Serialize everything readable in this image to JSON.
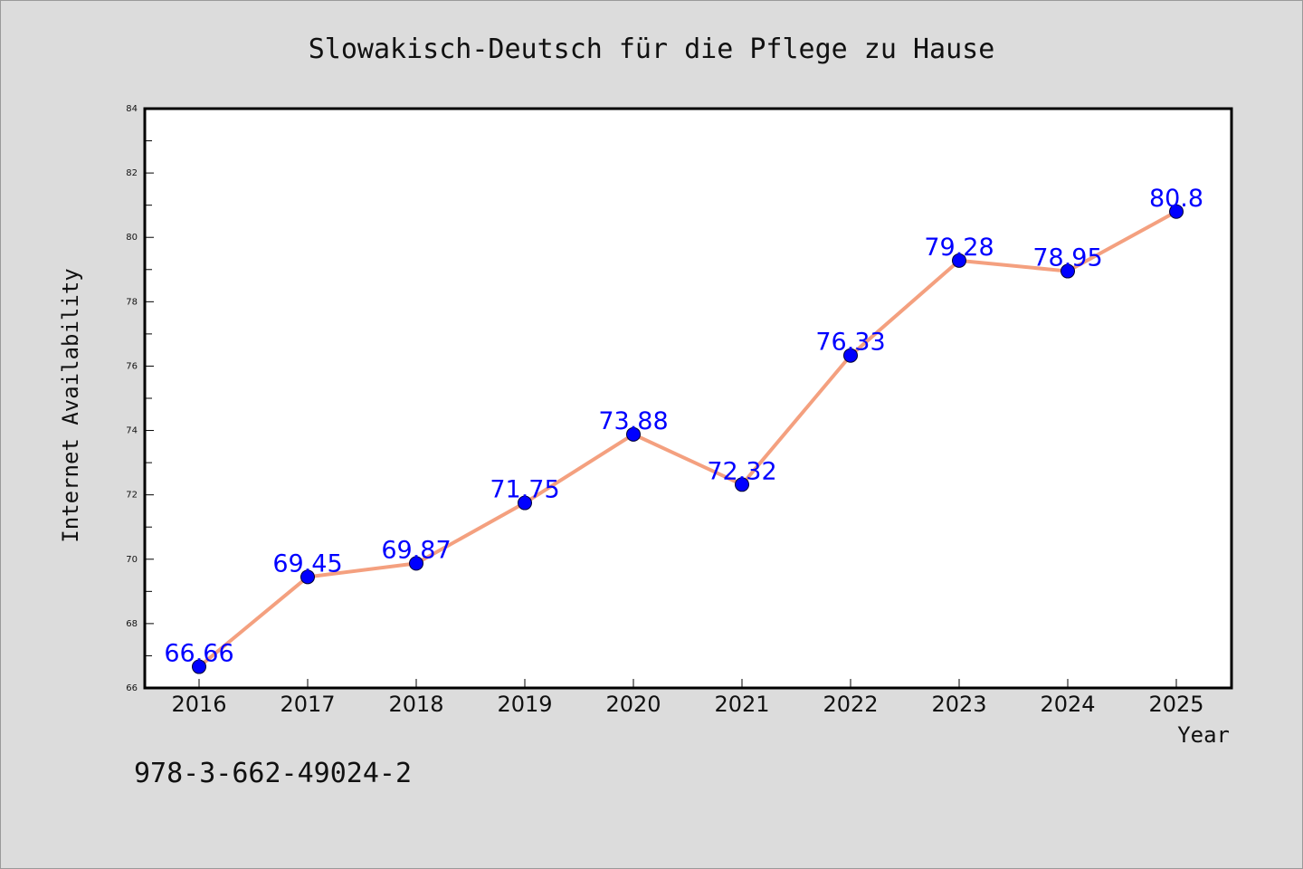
{
  "chart_data": {
    "type": "line",
    "title": "Slowakisch-Deutsch für die Pflege zu Hause",
    "xlabel": "Year",
    "ylabel": "Internet Availability",
    "x": [
      "2016",
      "2017",
      "2018",
      "2019",
      "2020",
      "2021",
      "2022",
      "2023",
      "2024",
      "2025"
    ],
    "series": [
      {
        "values": [
          66.66,
          69.45,
          69.87,
          71.75,
          73.88,
          72.32,
          76.33,
          79.28,
          78.95,
          80.8
        ],
        "labels": [
          "66.66",
          "69.45",
          "69.87",
          "71.75",
          "73.88",
          "72.32",
          "76.33",
          "79.28",
          "78.95",
          "80.8"
        ]
      }
    ],
    "ylim": [
      66,
      84
    ],
    "yticks": [
      "66",
      "68",
      "70",
      "72",
      "74",
      "76",
      "78",
      "80",
      "82",
      "84"
    ],
    "grid": false,
    "line_color": "#f4a07f",
    "marker_color": "#0000ff",
    "label_color": "#0000ff"
  },
  "footnote": "978-3-662-49024-2"
}
